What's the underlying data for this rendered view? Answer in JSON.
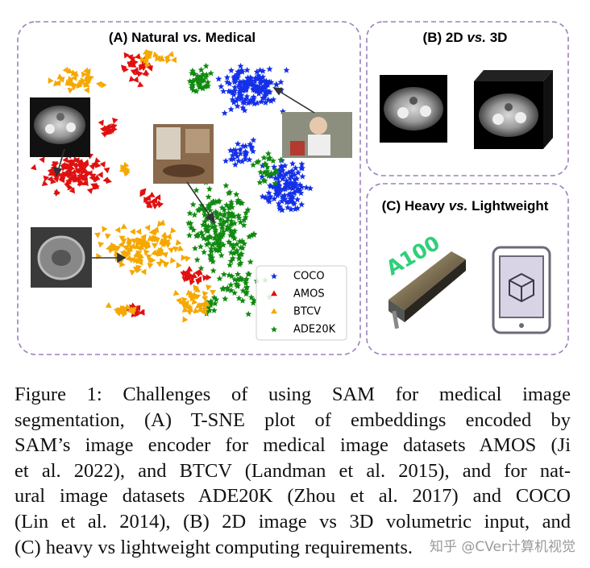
{
  "panels": [
    {
      "title": {
        "prefix": "(A) Natural ",
        "vs": "vs.",
        "suffix": " Medical"
      }
    },
    {
      "title": {
        "prefix": "(B) 2D ",
        "vs": "vs.",
        "suffix": " 3D"
      }
    },
    {
      "title": {
        "prefix": "(C) Heavy ",
        "vs": "vs.",
        "suffix": " Lightweight"
      }
    }
  ],
  "legend": [
    "COCO",
    "AMOS",
    "BTCV",
    "ADE20K"
  ],
  "gpu_label": "A100",
  "caption": {
    "lines": [
      "Figure 1: Challenges of using SAM for medical image",
      "segmentation, (A) T-SNE plot of embeddings encoded by",
      "SAM’s image encoder for medical image datasets AMOS (Ji",
      "et al. 2022), and BTCV (Landman et al. 2015), and for nat-",
      "ural image datasets ADE20K (Zhou et al. 2017) and COCO",
      "(Lin et al. 2014), (B) 2D image vs 3D volumetric input, and",
      "(C) heavy vs lightweight computing requirements."
    ]
  },
  "watermark": "知乎 @CVer计算机视觉"
}
